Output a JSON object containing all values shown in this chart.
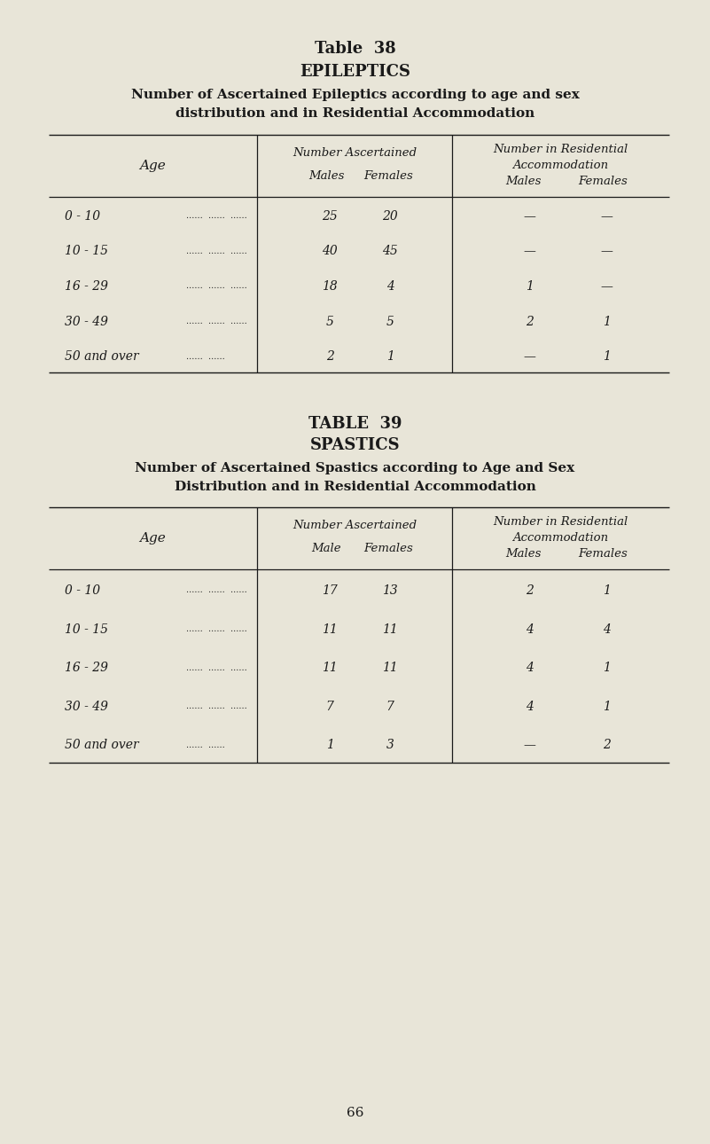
{
  "bg_color": "#e8e5d8",
  "text_color": "#1a1a1a",
  "page_num": "66",
  "table1": {
    "title1": "Table  38",
    "title2": "EPILEPTICS",
    "title3_line1": "Number of Ascertained Epileptics according to age and sex",
    "title3_line2": "distribution and in Residential Accommodation",
    "header_col1": "Age",
    "header_num_asc": "Number Ascertained",
    "header_males1": "Males",
    "header_females1": "Females",
    "header_res1": "Number in Residential",
    "header_res2": "Accommodation",
    "header_males2": "Males",
    "header_females2": "Females",
    "ages": [
      "0 - 10",
      "10 - 15",
      "16 - 29",
      "30 - 49",
      "50 and over"
    ],
    "dots": [
      "......  ......  ......",
      "......  ......  ......",
      "......  ......  ......",
      "......  ......  ......",
      "......  ......"
    ],
    "num_males": [
      "25",
      "40",
      "18",
      "5",
      "2"
    ],
    "num_females": [
      "20",
      "45",
      "4",
      "5",
      "1"
    ],
    "res_males": [
      "—",
      "—",
      "1",
      "2",
      "—"
    ],
    "res_females": [
      "—",
      "—",
      "—",
      "1",
      "1"
    ]
  },
  "table2": {
    "title1": "TABLE  39",
    "title2": "SPASTICS",
    "title3_line1": "Number of Ascertained Spastics according to Age and Sex",
    "title3_line2": "Distribution and in Residential Accommodation",
    "header_col1": "Age",
    "header_num_asc": "Number Ascertained",
    "header_males1": "Male",
    "header_females1": "Females",
    "header_res1": "Number in Residential",
    "header_res2": "Accommodation",
    "header_males2": "Males",
    "header_females2": "Females",
    "ages": [
      "0 - 10",
      "10 - 15",
      "16 - 29",
      "30 - 49",
      "50 and over"
    ],
    "dots": [
      "......  ......  ......",
      "......  ......  ......",
      "......  ......  ......",
      "......  ......  ......",
      "......  ......"
    ],
    "num_males": [
      "17",
      "11",
      "11",
      "7",
      "1"
    ],
    "num_females": [
      "13",
      "11",
      "11",
      "7",
      "3"
    ],
    "res_males": [
      "2",
      "4",
      "4",
      "4",
      "—"
    ],
    "res_females": [
      "1",
      "4",
      "1",
      "1",
      "2"
    ]
  }
}
